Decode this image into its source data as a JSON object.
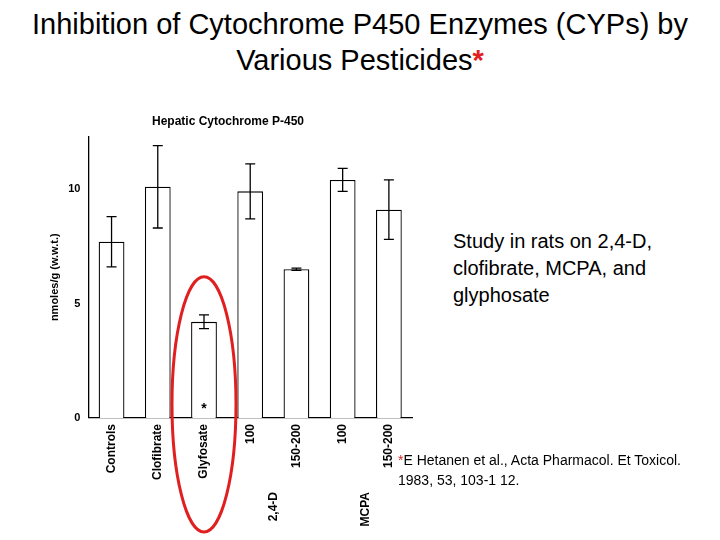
{
  "title": "Inhibition of Cytochrome P450 Enzymes (CYPs) by Various Pesticides",
  "title_mark": {
    "text": "*",
    "color": "#e02020"
  },
  "note": "Study in rats on 2,4-D, clofibrate, MCPA, and glyphosate",
  "citation": {
    "mark": "*",
    "mark_color": "#e02020",
    "text": "E Hetanen et al., Acta Pharmacol. Et Toxicol. 1983, 53, 103-1 12."
  },
  "chart_data": {
    "type": "bar",
    "title": "Hepatic Cytochrome P-450",
    "y_label": "nmoles/g (w.w.t.)",
    "categories": [
      "Controls",
      "Clofibrate",
      "Glyfosate",
      "100",
      "150-200",
      "100",
      "150-200"
    ],
    "groups": [
      {
        "label": "2,4-D",
        "from": 3,
        "to": 4
      },
      {
        "label": "MCPA",
        "from": 5,
        "to": 6
      }
    ],
    "values": [
      7.7,
      10.1,
      4.2,
      9.9,
      6.5,
      10.4,
      9.1
    ],
    "errors": [
      1.1,
      1.8,
      0.3,
      1.2,
      0.05,
      0.5,
      1.3
    ],
    "annotations": [
      {
        "category_index": 2,
        "text": "*"
      }
    ],
    "highlight": {
      "category_index": 2,
      "color": "#e02020"
    },
    "color": "#ffffff",
    "ylim": [
      0,
      12.3
    ],
    "yticks": [
      0,
      5,
      10
    ],
    "grid": false
  }
}
